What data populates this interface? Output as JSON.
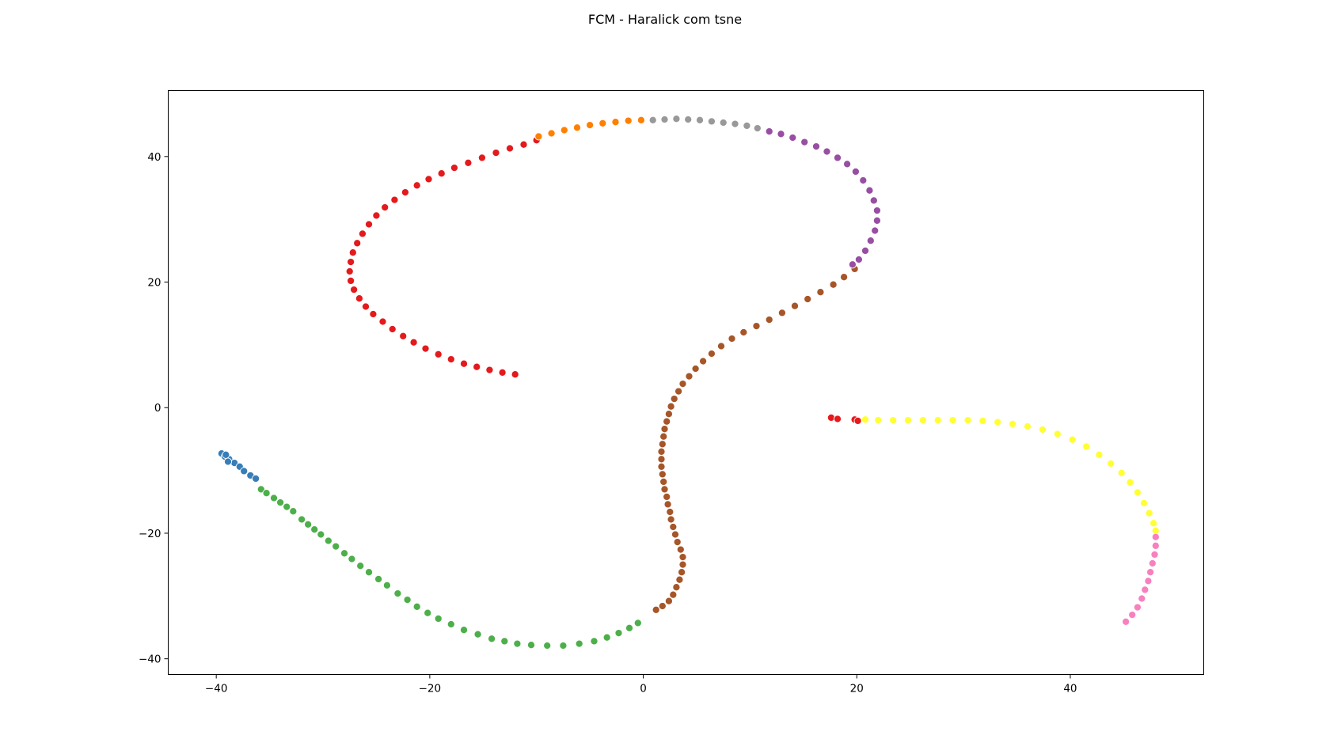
{
  "chart_data": {
    "type": "scatter",
    "title": "FCM - Haralick com tsne",
    "xlabel": "",
    "ylabel": "",
    "xlim": [
      -44.5,
      52.5
    ],
    "ylim": [
      -42.5,
      50.5
    ],
    "xticks": [
      -40,
      -20,
      0,
      20,
      40
    ],
    "yticks": [
      -40,
      -20,
      0,
      20,
      40
    ],
    "grid": false,
    "legend": "none",
    "series": [
      {
        "color": "#377eb8",
        "points": [
          [
            -39.5,
            -7.3
          ],
          [
            -39.2,
            -7.8
          ],
          [
            -38.8,
            -8.2
          ],
          [
            -38.3,
            -8.8
          ],
          [
            -37.8,
            -9.4
          ],
          [
            -37.4,
            -10.1
          ],
          [
            -36.8,
            -10.8
          ],
          [
            -36.3,
            -11.3
          ],
          [
            -38.9,
            -8.6
          ],
          [
            -39.1,
            -7.5
          ]
        ]
      },
      {
        "color": "#4daf4a",
        "points": [
          [
            -35.8,
            -13.0
          ],
          [
            -35.3,
            -13.6
          ],
          [
            -34.6,
            -14.4
          ],
          [
            -34.0,
            -15.1
          ],
          [
            -33.4,
            -15.8
          ],
          [
            -32.8,
            -16.5
          ],
          [
            -32.0,
            -17.8
          ],
          [
            -31.4,
            -18.6
          ],
          [
            -30.8,
            -19.4
          ],
          [
            -30.2,
            -20.2
          ],
          [
            -29.5,
            -21.2
          ],
          [
            -28.8,
            -22.1
          ],
          [
            -28.0,
            -23.2
          ],
          [
            -27.3,
            -24.1
          ],
          [
            -26.5,
            -25.2
          ],
          [
            -25.7,
            -26.2
          ],
          [
            -24.8,
            -27.3
          ],
          [
            -24.0,
            -28.3
          ],
          [
            -23.0,
            -29.6
          ],
          [
            -22.1,
            -30.6
          ],
          [
            -21.2,
            -31.7
          ],
          [
            -20.2,
            -32.7
          ],
          [
            -19.2,
            -33.6
          ],
          [
            -18.0,
            -34.5
          ],
          [
            -16.8,
            -35.4
          ],
          [
            -15.5,
            -36.1
          ],
          [
            -14.2,
            -36.8
          ],
          [
            -13.0,
            -37.2
          ],
          [
            -11.8,
            -37.6
          ],
          [
            -10.5,
            -37.8
          ],
          [
            -9.0,
            -37.9
          ],
          [
            -7.5,
            -37.9
          ],
          [
            -6.0,
            -37.6
          ],
          [
            -4.6,
            -37.2
          ],
          [
            -3.4,
            -36.6
          ],
          [
            -2.3,
            -35.9
          ],
          [
            -1.3,
            -35.1
          ],
          [
            -0.5,
            -34.3
          ]
        ]
      },
      {
        "color": "#a65628",
        "points": [
          [
            1.2,
            -32.2
          ],
          [
            1.8,
            -31.6
          ],
          [
            2.4,
            -30.8
          ],
          [
            2.8,
            -29.8
          ],
          [
            3.1,
            -28.6
          ],
          [
            3.4,
            -27.4
          ],
          [
            3.6,
            -26.2
          ],
          [
            3.7,
            -25.0
          ],
          [
            3.7,
            -23.8
          ],
          [
            3.5,
            -22.6
          ],
          [
            3.2,
            -21.4
          ],
          [
            3.0,
            -20.2
          ],
          [
            2.8,
            -19.0
          ],
          [
            2.6,
            -17.8
          ],
          [
            2.5,
            -16.6
          ],
          [
            2.3,
            -15.4
          ],
          [
            2.2,
            -14.2
          ],
          [
            2.0,
            -13.0
          ],
          [
            1.9,
            -11.8
          ],
          [
            1.8,
            -10.6
          ],
          [
            1.7,
            -9.4
          ],
          [
            1.7,
            -8.2
          ],
          [
            1.7,
            -7.0
          ],
          [
            1.8,
            -5.8
          ],
          [
            1.9,
            -4.6
          ],
          [
            2.0,
            -3.4
          ],
          [
            2.2,
            -2.2
          ],
          [
            2.4,
            -1.0
          ],
          [
            2.6,
            0.2
          ],
          [
            2.9,
            1.4
          ],
          [
            3.3,
            2.6
          ],
          [
            3.7,
            3.8
          ],
          [
            4.3,
            5.0
          ],
          [
            4.9,
            6.2
          ],
          [
            5.6,
            7.4
          ],
          [
            6.4,
            8.6
          ],
          [
            7.3,
            9.8
          ],
          [
            8.3,
            11.0
          ],
          [
            9.4,
            12.0
          ],
          [
            10.6,
            13.0
          ],
          [
            11.8,
            14.0
          ],
          [
            13.0,
            15.1
          ],
          [
            14.2,
            16.2
          ],
          [
            15.4,
            17.3
          ],
          [
            16.6,
            18.4
          ],
          [
            17.8,
            19.6
          ],
          [
            18.8,
            20.8
          ],
          [
            19.8,
            22.1
          ]
        ]
      },
      {
        "color": "#e41a1c",
        "points": [
          [
            -12.0,
            5.3
          ],
          [
            -13.2,
            5.6
          ],
          [
            -14.4,
            6.0
          ],
          [
            -15.6,
            6.5
          ],
          [
            -16.8,
            7.0
          ],
          [
            -18.0,
            7.7
          ],
          [
            -19.2,
            8.5
          ],
          [
            -20.4,
            9.4
          ],
          [
            -21.5,
            10.4
          ],
          [
            -22.5,
            11.4
          ],
          [
            -23.5,
            12.5
          ],
          [
            -24.4,
            13.7
          ],
          [
            -25.3,
            14.9
          ],
          [
            -26.0,
            16.1
          ],
          [
            -26.6,
            17.4
          ],
          [
            -27.1,
            18.8
          ],
          [
            -27.4,
            20.2
          ],
          [
            -27.5,
            21.7
          ],
          [
            -27.4,
            23.2
          ],
          [
            -27.2,
            24.7
          ],
          [
            -26.8,
            26.2
          ],
          [
            -26.3,
            27.7
          ],
          [
            -25.7,
            29.2
          ],
          [
            -25.0,
            30.6
          ],
          [
            -24.2,
            31.9
          ],
          [
            -23.3,
            33.1
          ],
          [
            -22.3,
            34.3
          ],
          [
            -21.2,
            35.4
          ],
          [
            -20.1,
            36.4
          ],
          [
            -18.9,
            37.3
          ],
          [
            -17.7,
            38.2
          ],
          [
            -16.4,
            39.0
          ],
          [
            -15.1,
            39.8
          ],
          [
            -13.8,
            40.6
          ],
          [
            -12.5,
            41.3
          ],
          [
            -11.2,
            41.9
          ],
          [
            -10.0,
            42.6
          ],
          [
            17.6,
            -1.6
          ],
          [
            18.2,
            -1.8
          ],
          [
            19.8,
            -1.9
          ],
          [
            20.1,
            -2.1
          ]
        ]
      },
      {
        "color": "#ff7f00",
        "points": [
          [
            -9.8,
            43.2
          ],
          [
            -8.6,
            43.7
          ],
          [
            -7.4,
            44.2
          ],
          [
            -6.2,
            44.6
          ],
          [
            -5.0,
            45.0
          ],
          [
            -3.8,
            45.3
          ],
          [
            -2.6,
            45.5
          ],
          [
            -1.4,
            45.7
          ],
          [
            -0.2,
            45.8
          ]
        ]
      },
      {
        "color": "#999999",
        "points": [
          [
            0.9,
            45.8
          ],
          [
            2.0,
            45.9
          ],
          [
            3.1,
            46.0
          ],
          [
            4.2,
            45.9
          ],
          [
            5.3,
            45.8
          ],
          [
            6.4,
            45.6
          ],
          [
            7.5,
            45.4
          ],
          [
            8.6,
            45.2
          ],
          [
            9.7,
            44.9
          ],
          [
            10.7,
            44.5
          ]
        ]
      },
      {
        "color": "#984ea3",
        "points": [
          [
            11.8,
            44.0
          ],
          [
            12.9,
            43.6
          ],
          [
            14.0,
            43.0
          ],
          [
            15.1,
            42.3
          ],
          [
            16.2,
            41.6
          ],
          [
            17.2,
            40.8
          ],
          [
            18.2,
            39.8
          ],
          [
            19.1,
            38.8
          ],
          [
            19.9,
            37.6
          ],
          [
            20.6,
            36.2
          ],
          [
            21.2,
            34.6
          ],
          [
            21.6,
            33.0
          ],
          [
            21.9,
            31.4
          ],
          [
            21.9,
            29.8
          ],
          [
            21.7,
            28.2
          ],
          [
            21.3,
            26.6
          ],
          [
            20.8,
            25.0
          ],
          [
            20.2,
            23.6
          ],
          [
            19.6,
            22.8
          ]
        ]
      },
      {
        "color": "#ffff33",
        "points": [
          [
            20.8,
            -1.9
          ],
          [
            22.0,
            -2.0
          ],
          [
            23.4,
            -2.0
          ],
          [
            24.8,
            -2.0
          ],
          [
            26.2,
            -2.0
          ],
          [
            27.6,
            -2.0
          ],
          [
            29.0,
            -2.0
          ],
          [
            30.4,
            -2.0
          ],
          [
            31.8,
            -2.1
          ],
          [
            33.2,
            -2.3
          ],
          [
            34.6,
            -2.6
          ],
          [
            36.0,
            -3.0
          ],
          [
            37.4,
            -3.5
          ],
          [
            38.8,
            -4.2
          ],
          [
            40.2,
            -5.1
          ],
          [
            41.5,
            -6.2
          ],
          [
            42.7,
            -7.5
          ],
          [
            43.8,
            -8.9
          ],
          [
            44.8,
            -10.4
          ],
          [
            45.6,
            -11.9
          ],
          [
            46.3,
            -13.5
          ],
          [
            46.9,
            -15.2
          ],
          [
            47.4,
            -16.8
          ],
          [
            47.8,
            -18.4
          ],
          [
            48.0,
            -19.6
          ]
        ]
      },
      {
        "color": "#f781bf",
        "points": [
          [
            48.0,
            -20.6
          ],
          [
            48.0,
            -22.0
          ],
          [
            47.9,
            -23.4
          ],
          [
            47.7,
            -24.8
          ],
          [
            47.5,
            -26.2
          ],
          [
            47.3,
            -27.6
          ],
          [
            47.0,
            -29.0
          ],
          [
            46.7,
            -30.4
          ],
          [
            46.3,
            -31.8
          ],
          [
            45.8,
            -33.0
          ],
          [
            45.2,
            -34.1
          ]
        ]
      }
    ]
  }
}
